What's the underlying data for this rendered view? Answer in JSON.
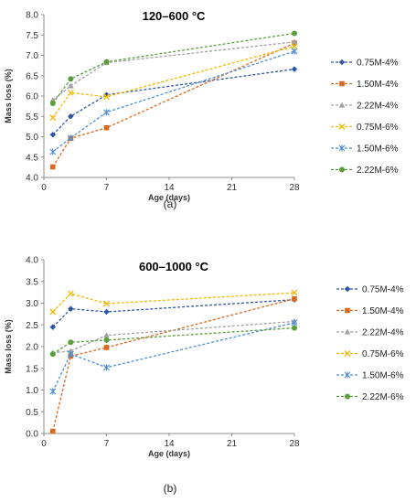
{
  "chart_data": [
    {
      "type": "line",
      "title": "120–600 °C",
      "caption": "(a)",
      "xlabel": "Age (days)",
      "ylabel": "Mass loss  (%)",
      "xlim": [
        0,
        28
      ],
      "ylim": [
        4.0,
        8.0
      ],
      "xticks": [
        "0",
        "7",
        "14",
        "21",
        "28"
      ],
      "yticks": [
        "4.0",
        "4.5",
        "5.0",
        "5.5",
        "6.0",
        "6.5",
        "7.0",
        "7.5",
        "8.0"
      ],
      "x": [
        1,
        3,
        7,
        28
      ],
      "grid": false,
      "legend_position": "right",
      "series": [
        {
          "name": "0.75M-4%",
          "color": "#2f56a6",
          "marker": "diamond",
          "values": [
            5.05,
            5.5,
            6.03,
            6.66
          ]
        },
        {
          "name": "1.50M-4%",
          "color": "#d9691f",
          "marker": "square",
          "values": [
            4.26,
            4.96,
            5.22,
            7.3
          ]
        },
        {
          "name": "2.22M-4%",
          "color": "#a0a0a0",
          "marker": "triangle",
          "values": [
            5.9,
            6.25,
            6.82,
            7.33
          ]
        },
        {
          "name": "0.75M-6%",
          "color": "#f2b800",
          "marker": "x",
          "values": [
            5.47,
            6.08,
            5.98,
            7.22
          ]
        },
        {
          "name": "1.50M-6%",
          "color": "#4f8fd6",
          "marker": "star",
          "values": [
            4.63,
            4.97,
            5.6,
            7.1
          ]
        },
        {
          "name": "2.22M-6%",
          "color": "#5a9e3a",
          "marker": "circle",
          "values": [
            5.82,
            6.42,
            6.84,
            7.54
          ]
        }
      ]
    },
    {
      "type": "line",
      "title": "600–1000 °C",
      "caption": "(b)",
      "xlabel": "Age (days)",
      "ylabel": "Mass loss  (%)",
      "xlim": [
        0,
        28
      ],
      "ylim": [
        0.0,
        4.0
      ],
      "xticks": [
        "0",
        "7",
        "14",
        "21",
        "28"
      ],
      "yticks": [
        "0.0",
        "0.5",
        "1.0",
        "1.5",
        "2.0",
        "2.5",
        "3.0",
        "3.5",
        "4.0"
      ],
      "x": [
        1,
        3,
        7,
        28
      ],
      "grid": false,
      "legend_position": "right",
      "series": [
        {
          "name": "0.75M-4%",
          "color": "#2f56a6",
          "marker": "diamond",
          "values": [
            2.45,
            2.87,
            2.8,
            3.08
          ]
        },
        {
          "name": "1.50M-4%",
          "color": "#d9691f",
          "marker": "square",
          "values": [
            0.05,
            1.78,
            1.98,
            3.1
          ]
        },
        {
          "name": "2.22M-4%",
          "color": "#a0a0a0",
          "marker": "triangle",
          "values": [
            1.86,
            1.9,
            2.26,
            2.58
          ]
        },
        {
          "name": "0.75M-6%",
          "color": "#f2b800",
          "marker": "x",
          "values": [
            2.8,
            3.22,
            2.99,
            3.24
          ]
        },
        {
          "name": "1.50M-6%",
          "color": "#4f8fd6",
          "marker": "star",
          "values": [
            0.97,
            1.83,
            1.52,
            2.55
          ]
        },
        {
          "name": "2.22M-6%",
          "color": "#5a9e3a",
          "marker": "circle",
          "values": [
            1.83,
            2.1,
            2.15,
            2.43
          ]
        }
      ]
    }
  ]
}
